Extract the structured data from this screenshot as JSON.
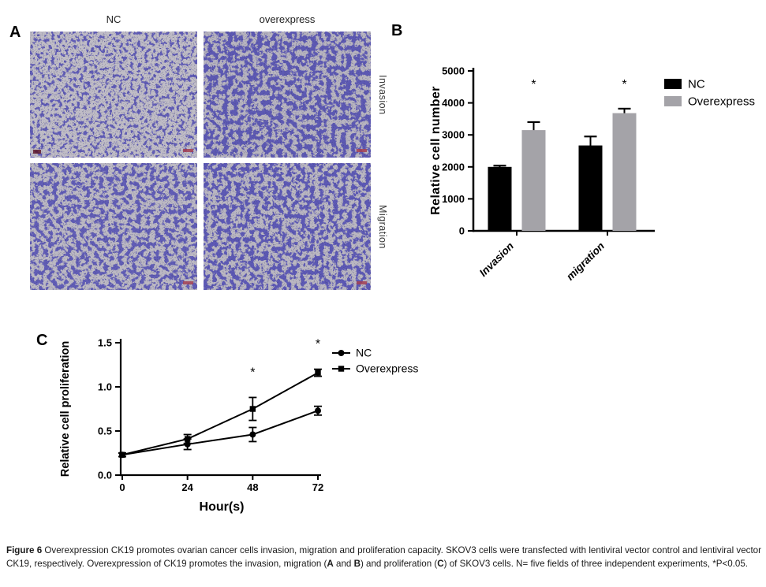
{
  "figure": {
    "panel_a": {
      "label": "A",
      "col_headers": [
        "NC",
        "overexpress"
      ],
      "row_labels": [
        "Invasion",
        "Migration"
      ],
      "images": [
        {
          "id": "nc-invasion",
          "column": "NC",
          "row": "Invasion",
          "density": "moderate"
        },
        {
          "id": "overexpress-invasion",
          "column": "overexpress",
          "row": "Invasion",
          "density": "high"
        },
        {
          "id": "nc-migration",
          "column": "NC",
          "row": "Migration",
          "density": "high"
        },
        {
          "id": "overexpress-migration",
          "column": "overexpress",
          "row": "Migration",
          "density": "high"
        }
      ],
      "stain_color": "#23237a",
      "background_color": "#bdbac4",
      "scale_mark_color": "#a34052"
    },
    "panel_b": {
      "label": "B"
    },
    "panel_c": {
      "label": "C"
    }
  },
  "chart_data": [
    {
      "type": "bar",
      "categories": [
        "Invasion",
        "migration"
      ],
      "series": [
        {
          "name": "NC",
          "color": "#000000",
          "values": [
            2000,
            2670
          ],
          "errors": [
            40,
            280
          ]
        },
        {
          "name": "Overexpress",
          "color": "#a4a3a8",
          "values": [
            3150,
            3680
          ],
          "errors": [
            250,
            140
          ]
        }
      ],
      "ylabel": "Relative cell number",
      "xlabel": "",
      "title": "",
      "ylim": [
        0,
        5000
      ],
      "yticks": [
        0,
        1000,
        2000,
        3000,
        4000,
        5000
      ],
      "significance": [
        {
          "category": "Invasion",
          "series": "Overexpress",
          "marker": "*"
        },
        {
          "category": "migration",
          "series": "Overexpress",
          "marker": "*"
        }
      ],
      "legend_position": "right"
    },
    {
      "type": "line",
      "x": [
        0,
        24,
        48,
        72
      ],
      "xticklabels": [
        "0",
        "24",
        "48",
        "72"
      ],
      "series": [
        {
          "name": "NC",
          "marker": "circle",
          "color": "#000000",
          "values": [
            0.23,
            0.35,
            0.46,
            0.73
          ],
          "errors": [
            0.02,
            0.06,
            0.08,
            0.05
          ]
        },
        {
          "name": "Overexpress",
          "marker": "square",
          "color": "#000000",
          "values": [
            0.23,
            0.41,
            0.75,
            1.16
          ],
          "errors": [
            0.02,
            0.05,
            0.13,
            0.04
          ]
        }
      ],
      "ylabel": "Relative cell proliferation",
      "xlabel": "Hour(s)",
      "title": "",
      "ylim": [
        0.0,
        1.5
      ],
      "yticks": [
        0.0,
        0.5,
        1.0,
        1.5
      ],
      "significance": [
        {
          "x": 48,
          "marker": "*"
        },
        {
          "x": 72,
          "marker": "*"
        }
      ],
      "legend_position": "top-right"
    }
  ],
  "caption": {
    "segments": [
      {
        "text": "Figure 6 ",
        "bold": true
      },
      {
        "text": "Overexpression CK19 promotes ovarian cancer cells invasion, migration and proliferation capacity. SKOV3 cells were transfected with lentiviral vector control and lentiviral vector CK19, respectively. Overexpression of CK19 promotes the invasion, migration (",
        "bold": false
      },
      {
        "text": "A",
        "bold": true
      },
      {
        "text": " and ",
        "bold": false
      },
      {
        "text": "B",
        "bold": true
      },
      {
        "text": ") and proliferation (",
        "bold": false
      },
      {
        "text": "C",
        "bold": true
      },
      {
        "text": ") of SKOV3 cells. N= five fields of three independent experiments, *P<0.05.",
        "bold": false
      }
    ]
  }
}
